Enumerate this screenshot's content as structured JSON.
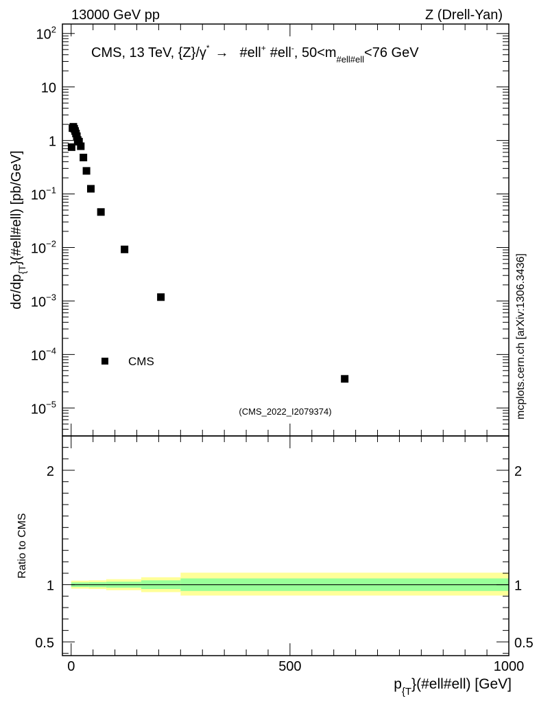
{
  "header": {
    "left": "13000 GeV pp",
    "right": "Z (Drell-Yan)"
  },
  "side_label": "mcplots.cern.ch [arXiv:1306.3436]",
  "chart_data": [
    {
      "type": "scatter",
      "title": "CMS, 13 TeV, {Z}/γ* → #ell+ #ell-, 50<m#ell#ell<76 GeV",
      "title_parts": {
        "main": "CMS, 13 TeV, {Z}/γ",
        "sup_star": "*",
        "arrow": "→",
        "ell1": "#ell",
        "sup_plus": "+",
        "ell2": "#ell",
        "sup_minus": "-",
        "mass_prefix": ", 50<m",
        "mass_sub": "#ell#ell",
        "mass_suffix": "<76 GeV"
      },
      "ylabel_parts": {
        "pre": "dσ/dp",
        "sub": "{T",
        "post": "}(#ell#ell) [pb/GeV]"
      },
      "yscale": "log",
      "ylim": [
        3e-06,
        150
      ],
      "xlim": [
        -20,
        1000
      ],
      "y_ticks": [
        {
          "v": 1e-05,
          "base": "10",
          "exp": "−5"
        },
        {
          "v": 0.0001,
          "base": "10",
          "exp": "−4"
        },
        {
          "v": 0.001,
          "base": "10",
          "exp": "−3"
        },
        {
          "v": 0.01,
          "base": "10",
          "exp": "−2"
        },
        {
          "v": 0.1,
          "base": "10",
          "exp": "−1"
        },
        {
          "v": 1,
          "base": "1",
          "exp": ""
        },
        {
          "v": 10,
          "base": "10",
          "exp": ""
        },
        {
          "v": 100,
          "base": "10",
          "exp": "2"
        }
      ],
      "series": [
        {
          "name": "CMS",
          "x": [
            1,
            3,
            5,
            7,
            9,
            11,
            13,
            15,
            18,
            22,
            28,
            35,
            45,
            68,
            122,
            205,
            625
          ],
          "y": [
            0.75,
            1.7,
            1.8,
            1.65,
            1.5,
            1.35,
            1.2,
            1.02,
            0.95,
            0.78,
            0.48,
            0.27,
            0.125,
            0.046,
            0.0092,
            0.00118,
            3.5e-05
          ]
        }
      ],
      "legend": {
        "label": "CMS",
        "placement": "left-lower"
      },
      "watermark": "(CMS_2022_I2079374)"
    },
    {
      "type": "band",
      "ylabel": "Ratio to CMS",
      "xlabel_parts": {
        "pre": "p",
        "sub": "{T",
        "post": "}(#ell#ell) [GeV]"
      },
      "xlim": [
        -20,
        1000
      ],
      "ylim": [
        0.38,
        2.3
      ],
      "x_ticks": [
        0,
        500,
        1000
      ],
      "y_ticks": [
        0.5,
        1,
        2
      ],
      "reference_line": 1,
      "bands": [
        {
          "x": [
            0,
            40
          ],
          "inner": [
            0.98,
            1.02
          ],
          "outer": [
            0.965,
            1.035
          ]
        },
        {
          "x": [
            40,
            80
          ],
          "inner": [
            0.978,
            1.022
          ],
          "outer": [
            0.962,
            1.038
          ]
        },
        {
          "x": [
            80,
            160
          ],
          "inner": [
            0.974,
            1.026
          ],
          "outer": [
            0.952,
            1.048
          ]
        },
        {
          "x": [
            160,
            250
          ],
          "inner": [
            0.962,
            1.038
          ],
          "outer": [
            0.935,
            1.065
          ]
        },
        {
          "x": [
            250,
            1000
          ],
          "inner": [
            0.945,
            1.055
          ],
          "outer": [
            0.905,
            1.105
          ]
        }
      ],
      "colors": {
        "inner": "#99ff99",
        "outer": "#ffff99",
        "line": "#000000"
      }
    }
  ]
}
